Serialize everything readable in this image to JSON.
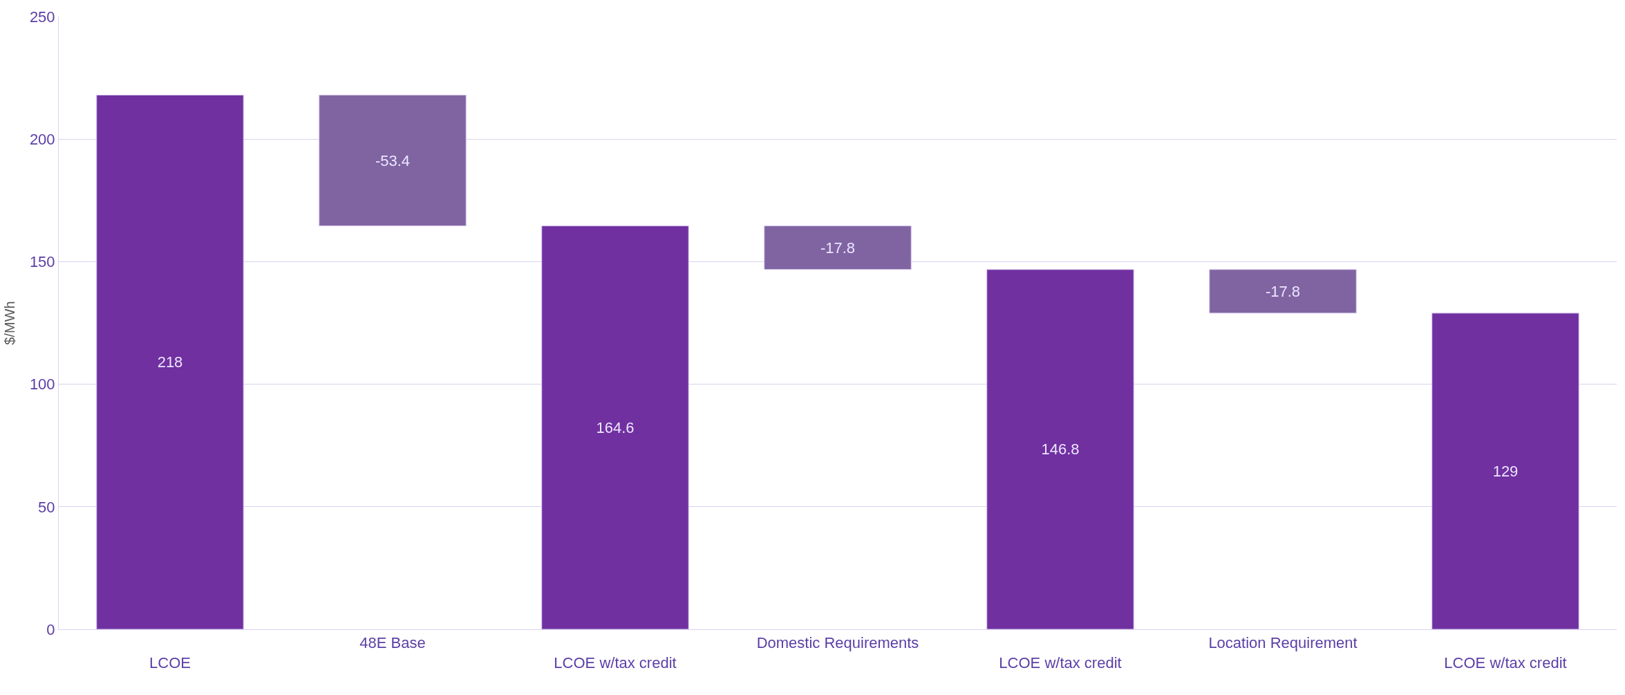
{
  "chart_data": {
    "type": "bar",
    "ylabel": "$/MWh",
    "categories": [
      "LCOE",
      "48E Base",
      "LCOE w/tax credit",
      "Domestic Requirements",
      "LCOE w/tax credit",
      "Location Requirement",
      "LCOE w/tax credit"
    ],
    "values": [
      218,
      -53.4,
      164.6,
      -17.8,
      146.8,
      -17.8,
      129
    ],
    "base": [
      0,
      218,
      0,
      164.6,
      0,
      146.8,
      0
    ],
    "colors": [
      "#7030a0",
      "#8064a2",
      "#7030a0",
      "#8064a2",
      "#7030a0",
      "#8064a2",
      "#7030a0"
    ],
    "data_labels": true,
    "ylim": [
      0,
      250
    ],
    "yticks": [
      0,
      50,
      100,
      150,
      200,
      250
    ],
    "grid": "y"
  }
}
